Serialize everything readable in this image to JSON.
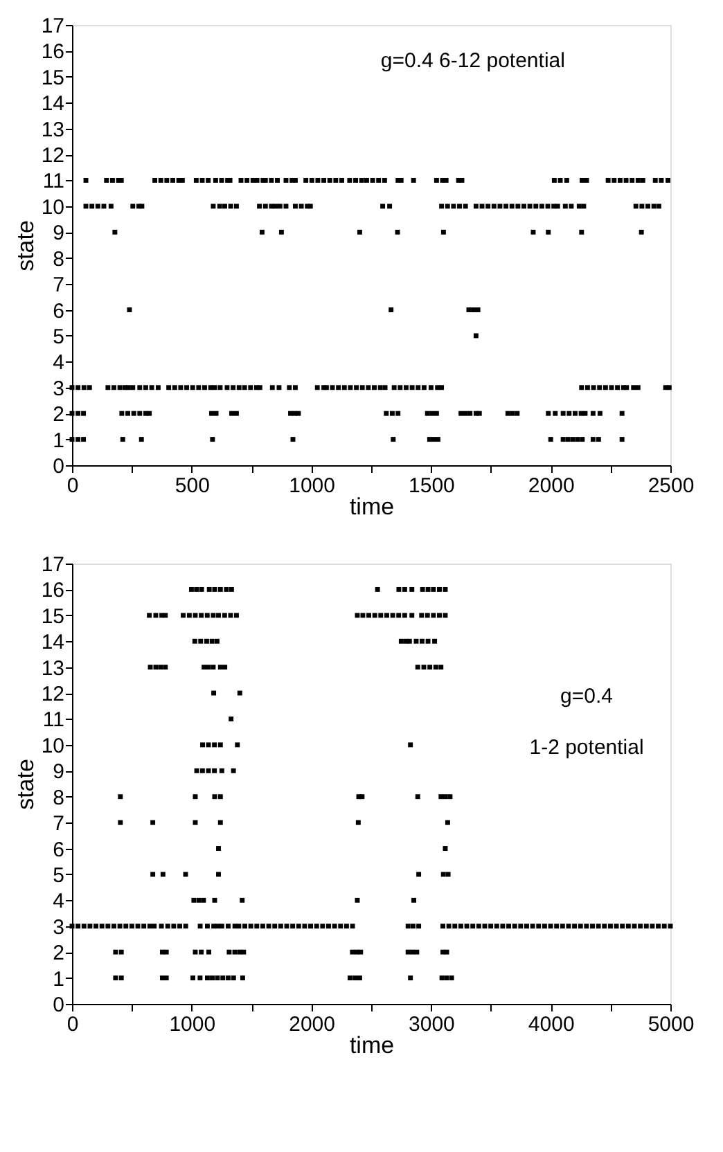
{
  "chart_data": [
    {
      "type": "scatter",
      "xlabel": "time",
      "ylabel": "state",
      "annotations": [
        "g=0.4   6-12 potential"
      ],
      "marker": "square",
      "grid": false,
      "legend": false,
      "xlim": [
        0,
        2500
      ],
      "ylim": [
        0,
        17
      ],
      "xticks": [
        0,
        {
          "value": 250,
          "label": null
        },
        500,
        {
          "value": 750,
          "label": null
        },
        1000,
        {
          "value": 1250,
          "label": null
        },
        1500,
        {
          "value": 1750,
          "label": null
        },
        2000,
        {
          "value": 2250,
          "label": null
        },
        2500
      ],
      "yticks": [
        0,
        1,
        2,
        3,
        4,
        5,
        6,
        7,
        8,
        9,
        10,
        11,
        12,
        13,
        14,
        15,
        16,
        17
      ],
      "series": [
        {
          "color": "#000000",
          "x": [
            58,
            144,
            169,
            194,
            206,
            346,
            371,
            396,
            421,
            446,
            461,
            519,
            544,
            569,
            600,
            625,
            650,
            660,
            706,
            731,
            756,
            773,
            798,
            808,
            833,
            858,
            894,
            919,
            933,
            977,
            1002,
            1027,
            1052,
            1077,
            1102,
            1127,
            1160,
            1185,
            1210,
            1231,
            1256,
            1281,
            1306,
            1362,
            1375,
            1427,
            1523,
            1548,
            1563,
            1615,
            1629,
            2015,
            2040,
            2067,
            2131,
            2150,
            2240,
            2265,
            2290,
            2315,
            2340,
            2365,
            2385,
            2437,
            2462,
            2490
          ],
          "values": [
            11,
            11,
            11,
            11,
            11,
            11,
            11,
            11,
            11,
            11,
            11,
            11,
            11,
            11,
            11,
            11,
            11,
            11,
            11,
            11,
            11,
            11,
            11,
            11,
            11,
            11,
            11,
            11,
            11,
            11,
            11,
            11,
            11,
            11,
            11,
            11,
            11,
            11,
            11,
            11,
            11,
            11,
            11,
            11,
            11,
            11,
            11,
            11,
            11,
            11,
            11,
            11,
            11,
            11,
            11,
            11,
            11,
            11,
            11,
            11,
            11,
            11,
            11,
            11,
            11,
            11
          ]
        },
        {
          "color": "#000000",
          "x": [
            58,
            83,
            108,
            133,
            163,
            254,
            279,
            292,
            590,
            617,
            638,
            663,
            687,
            783,
            808,
            833,
            850,
            869,
            894,
            933,
            958,
            983,
            996,
            1298,
            1327,
            1544,
            1569,
            1594,
            1619,
            1644,
            1688,
            1713,
            1738,
            1763,
            1788,
            1813,
            1838,
            1863,
            1888,
            1913,
            1938,
            1963,
            1988,
            2013,
            2029,
            2061,
            2086,
            2119,
            2138,
            2356,
            2381,
            2406,
            2431,
            2452
          ],
          "values": [
            10,
            10,
            10,
            10,
            10,
            10,
            10,
            10,
            10,
            10,
            10,
            10,
            10,
            10,
            10,
            10,
            10,
            10,
            10,
            10,
            10,
            10,
            10,
            10,
            10,
            10,
            10,
            10,
            10,
            10,
            10,
            10,
            10,
            10,
            10,
            10,
            10,
            10,
            10,
            10,
            10,
            10,
            10,
            10,
            10,
            10,
            10,
            10,
            10,
            10,
            10,
            10,
            10,
            10
          ]
        },
        {
          "color": "#000000",
          "x": [
            179,
            794,
            875,
            1202,
            1360,
            1552,
            1927,
            1990,
            2129,
            2379
          ],
          "values": [
            9,
            9,
            9,
            9,
            9,
            9,
            9,
            9,
            9,
            9
          ]
        },
        {
          "color": "#000000",
          "x": [
            240,
            1333,
            1658,
            1677,
            1696
          ],
          "values": [
            6,
            6,
            6,
            6,
            6
          ]
        },
        {
          "color": "#000000",
          "x": [
            1688
          ],
          "values": [
            5
          ]
        },
        {
          "color": "#000000",
          "x": [
            0,
            25,
            50,
            73,
            150,
            175,
            200,
            221,
            235,
            254,
            283,
            308,
            333,
            360,
            404,
            429,
            454,
            479,
            504,
            529,
            554,
            579,
            596,
            619,
            648,
            673,
            698,
            721,
            746,
            771,
            785,
            837,
            865,
            908,
            933,
            1025,
            1052,
            1063,
            1088,
            1113,
            1138,
            1163,
            1188,
            1213,
            1238,
            1263,
            1288,
            1308,
            1346,
            1371,
            1396,
            1421,
            1446,
            1471,
            1500,
            1527,
            1544,
            2129,
            2154,
            2179,
            2204,
            2229,
            2254,
            2279,
            2304,
            2317,
            2346,
            2365,
            2480,
            2495
          ],
          "values": [
            3,
            3,
            3,
            3,
            3,
            3,
            3,
            3,
            3,
            3,
            3,
            3,
            3,
            3,
            3,
            3,
            3,
            3,
            3,
            3,
            3,
            3,
            3,
            3,
            3,
            3,
            3,
            3,
            3,
            3,
            3,
            3,
            3,
            3,
            3,
            3,
            3,
            3,
            3,
            3,
            3,
            3,
            3,
            3,
            3,
            3,
            3,
            3,
            3,
            3,
            3,
            3,
            3,
            3,
            3,
            3,
            3,
            3,
            3,
            3,
            3,
            3,
            3,
            3,
            3,
            3,
            3,
            3,
            3,
            3
          ]
        },
        {
          "color": "#000000",
          "x": [
            0,
            25,
            48,
            208,
            233,
            258,
            283,
            308,
            323,
            583,
            602,
            667,
            687,
            913,
            930,
            946,
            1313,
            1338,
            1362,
            1485,
            1504,
            1523,
            1625,
            1644,
            1663,
            1688,
            1702,
            1821,
            1840,
            1860,
            1990,
            2019,
            2052,
            2077,
            2102,
            2127,
            2144,
            2177,
            2206,
            2298
          ],
          "values": [
            2,
            2,
            2,
            2,
            2,
            2,
            2,
            2,
            2,
            2,
            2,
            2,
            2,
            2,
            2,
            2,
            2,
            2,
            2,
            2,
            2,
            2,
            2,
            2,
            2,
            2,
            2,
            2,
            2,
            2,
            2,
            2,
            2,
            2,
            2,
            2,
            2,
            2,
            2,
            2
          ]
        },
        {
          "color": "#000000",
          "x": [
            0,
            25,
            48,
            212,
            290,
            587,
            923,
            1342,
            1494,
            1512,
            1529,
            2000,
            2052,
            2072,
            2092,
            2112,
            2132,
            2177,
            2200,
            2298
          ],
          "values": [
            1,
            1,
            1,
            1,
            1,
            1,
            1,
            1,
            1,
            1,
            1,
            1,
            1,
            1,
            1,
            1,
            1,
            1,
            1,
            1
          ]
        }
      ]
    },
    {
      "type": "scatter",
      "xlabel": "time",
      "ylabel": "state",
      "annotations": [
        "g=0.4",
        "1-2 potential"
      ],
      "marker": "square",
      "grid": false,
      "legend": false,
      "xlim": [
        0,
        5000
      ],
      "ylim": [
        0,
        17
      ],
      "xticks": [
        0,
        {
          "value": 500,
          "label": null
        },
        1000,
        {
          "value": 1500,
          "label": null
        },
        2000,
        {
          "value": 2500,
          "label": null
        },
        3000,
        {
          "value": 3500,
          "label": null
        },
        4000,
        {
          "value": 4500,
          "label": null
        },
        5000
      ],
      "yticks": [
        0,
        1,
        2,
        3,
        4,
        5,
        6,
        7,
        8,
        9,
        10,
        11,
        12,
        13,
        14,
        15,
        16,
        17
      ],
      "series": [
        {
          "color": "#000000",
          "x": [
            998,
            1040,
            1083,
            1147,
            1192,
            1240,
            1290,
            1333,
            2553,
            2731,
            2780,
            2840,
            2929,
            2975,
            3020,
            3070,
            3119
          ],
          "values": [
            16,
            16,
            16,
            16,
            16,
            16,
            16,
            16,
            16,
            16,
            16,
            16,
            16,
            16,
            16,
            16,
            16
          ]
        },
        {
          "color": "#000000",
          "x": [
            646,
            700,
            750,
            780,
            929,
            980,
            1030,
            1080,
            1130,
            1180,
            1224,
            1275,
            1325,
            1374,
            2384,
            2430,
            2480,
            2530,
            2580,
            2630,
            2680,
            2730,
            2780,
            2840,
            2921,
            2970,
            3020,
            3070,
            3119
          ],
          "values": [
            15,
            15,
            15,
            15,
            15,
            15,
            15,
            15,
            15,
            15,
            15,
            15,
            15,
            15,
            15,
            15,
            15,
            15,
            15,
            15,
            15,
            15,
            15,
            15,
            15,
            15,
            15,
            15,
            15
          ]
        },
        {
          "color": "#000000",
          "x": [
            1026,
            1075,
            1125,
            1170,
            1212,
            2751,
            2790,
            2820,
            2876,
            2925,
            2975,
            3030
          ],
          "values": [
            14,
            14,
            14,
            14,
            14,
            14,
            14,
            14,
            14,
            14,
            14,
            14
          ]
        },
        {
          "color": "#000000",
          "x": [
            654,
            700,
            740,
            780,
            1103,
            1140,
            1180,
            1240,
            1277,
            2889,
            2940,
            2990,
            3040,
            3083
          ],
          "values": [
            13,
            13,
            13,
            13,
            13,
            13,
            13,
            13,
            13,
            13,
            13,
            13,
            13,
            13
          ]
        },
        {
          "color": "#000000",
          "x": [
            1184,
            1402
          ],
          "values": [
            12,
            12
          ]
        },
        {
          "color": "#000000",
          "x": [
            1329
          ],
          "values": [
            11
          ]
        },
        {
          "color": "#000000",
          "x": [
            1091,
            1140,
            1190,
            1240,
            1382,
            2828
          ],
          "values": [
            10,
            10,
            10,
            10,
            10,
            10
          ]
        },
        {
          "color": "#000000",
          "x": [
            1042,
            1090,
            1140,
            1190,
            1252,
            1349
          ],
          "values": [
            9,
            9,
            9,
            9,
            9,
            9
          ]
        },
        {
          "color": "#000000",
          "x": [
            404,
            1030,
            1192,
            1240,
            2396,
            2424,
            2889,
            3083,
            3120,
            3159
          ],
          "values": [
            8,
            8,
            8,
            8,
            8,
            8,
            8,
            8,
            8,
            8
          ]
        },
        {
          "color": "#000000",
          "x": [
            404,
            675,
            1030,
            1240,
            2392,
            3139
          ],
          "values": [
            7,
            7,
            7,
            7,
            7,
            7
          ]
        },
        {
          "color": "#000000",
          "x": [
            1224,
            3119
          ],
          "values": [
            6,
            6
          ]
        },
        {
          "color": "#000000",
          "x": [
            675,
            760,
            949,
            1224,
            2897,
            3103,
            3143
          ],
          "values": [
            5,
            5,
            5,
            5,
            5,
            5,
            5
          ]
        },
        {
          "color": "#000000",
          "x": [
            1018,
            1060,
            1099,
            1192,
            1422,
            2384,
            2856
          ],
          "values": [
            4,
            4,
            4,
            4,
            4,
            4,
            4
          ]
        },
        {
          "color": "#000000",
          "x": [
            0,
            50,
            100,
            150,
            200,
            250,
            300,
            350,
            400,
            450,
            500,
            550,
            600,
            650,
            687,
            747,
            800,
            850,
            900,
            950,
            1071,
            1131,
            1184,
            1218,
            1252,
            1305,
            1361,
            1394,
            1444,
            1494,
            1544,
            1594,
            1644,
            1694,
            1744,
            1794,
            1844,
            1894,
            1944,
            1994,
            2044,
            2094,
            2144,
            2194,
            2244,
            2294,
            2344,
            2808,
            2850,
            2897,
            3099,
            3149,
            3199,
            3249,
            3299,
            3349,
            3399,
            3449,
            3499,
            3549,
            3599,
            3649,
            3699,
            3749,
            3799,
            3849,
            3899,
            3949,
            3999,
            4049,
            4099,
            4149,
            4199,
            4249,
            4299,
            4349,
            4399,
            4449,
            4499,
            4549,
            4599,
            4649,
            4699,
            4749,
            4799,
            4849,
            4899,
            4949,
            5000
          ],
          "values": [
            3,
            3,
            3,
            3,
            3,
            3,
            3,
            3,
            3,
            3,
            3,
            3,
            3,
            3,
            3,
            3,
            3,
            3,
            3,
            3,
            3,
            3,
            3,
            3,
            3,
            3,
            3,
            3,
            3,
            3,
            3,
            3,
            3,
            3,
            3,
            3,
            3,
            3,
            3,
            3,
            3,
            3,
            3,
            3,
            3,
            3,
            3,
            3,
            3,
            3,
            3,
            3,
            3,
            3,
            3,
            3,
            3,
            3,
            3,
            3,
            3,
            3,
            3,
            3,
            3,
            3,
            3,
            3,
            3,
            3,
            3,
            3,
            3,
            3,
            3,
            3,
            3,
            3,
            3,
            3,
            3,
            3,
            3,
            3,
            3,
            3,
            3,
            3,
            3
          ]
        },
        {
          "color": "#000000",
          "x": [
            364,
            412,
            755,
            788,
            1030,
            1080,
            1143,
            1313,
            1360,
            1400,
            1434,
            2343,
            2380,
            2412,
            2808,
            2845,
            2881,
            3099,
            3131
          ],
          "values": [
            2,
            2,
            2,
            2,
            2,
            2,
            2,
            2,
            2,
            2,
            2,
            2,
            2,
            2,
            2,
            2,
            2,
            2,
            2
          ]
        },
        {
          "color": "#000000",
          "x": [
            364,
            412,
            755,
            788,
            1010,
            1070,
            1131,
            1172,
            1215,
            1260,
            1305,
            1350,
            1426,
            2323,
            2365,
            2404,
            2828,
            3091,
            3130,
            3172
          ],
          "values": [
            1,
            1,
            1,
            1,
            1,
            1,
            1,
            1,
            1,
            1,
            1,
            1,
            1,
            1,
            1,
            1,
            1,
            1,
            1,
            1
          ]
        }
      ]
    }
  ]
}
